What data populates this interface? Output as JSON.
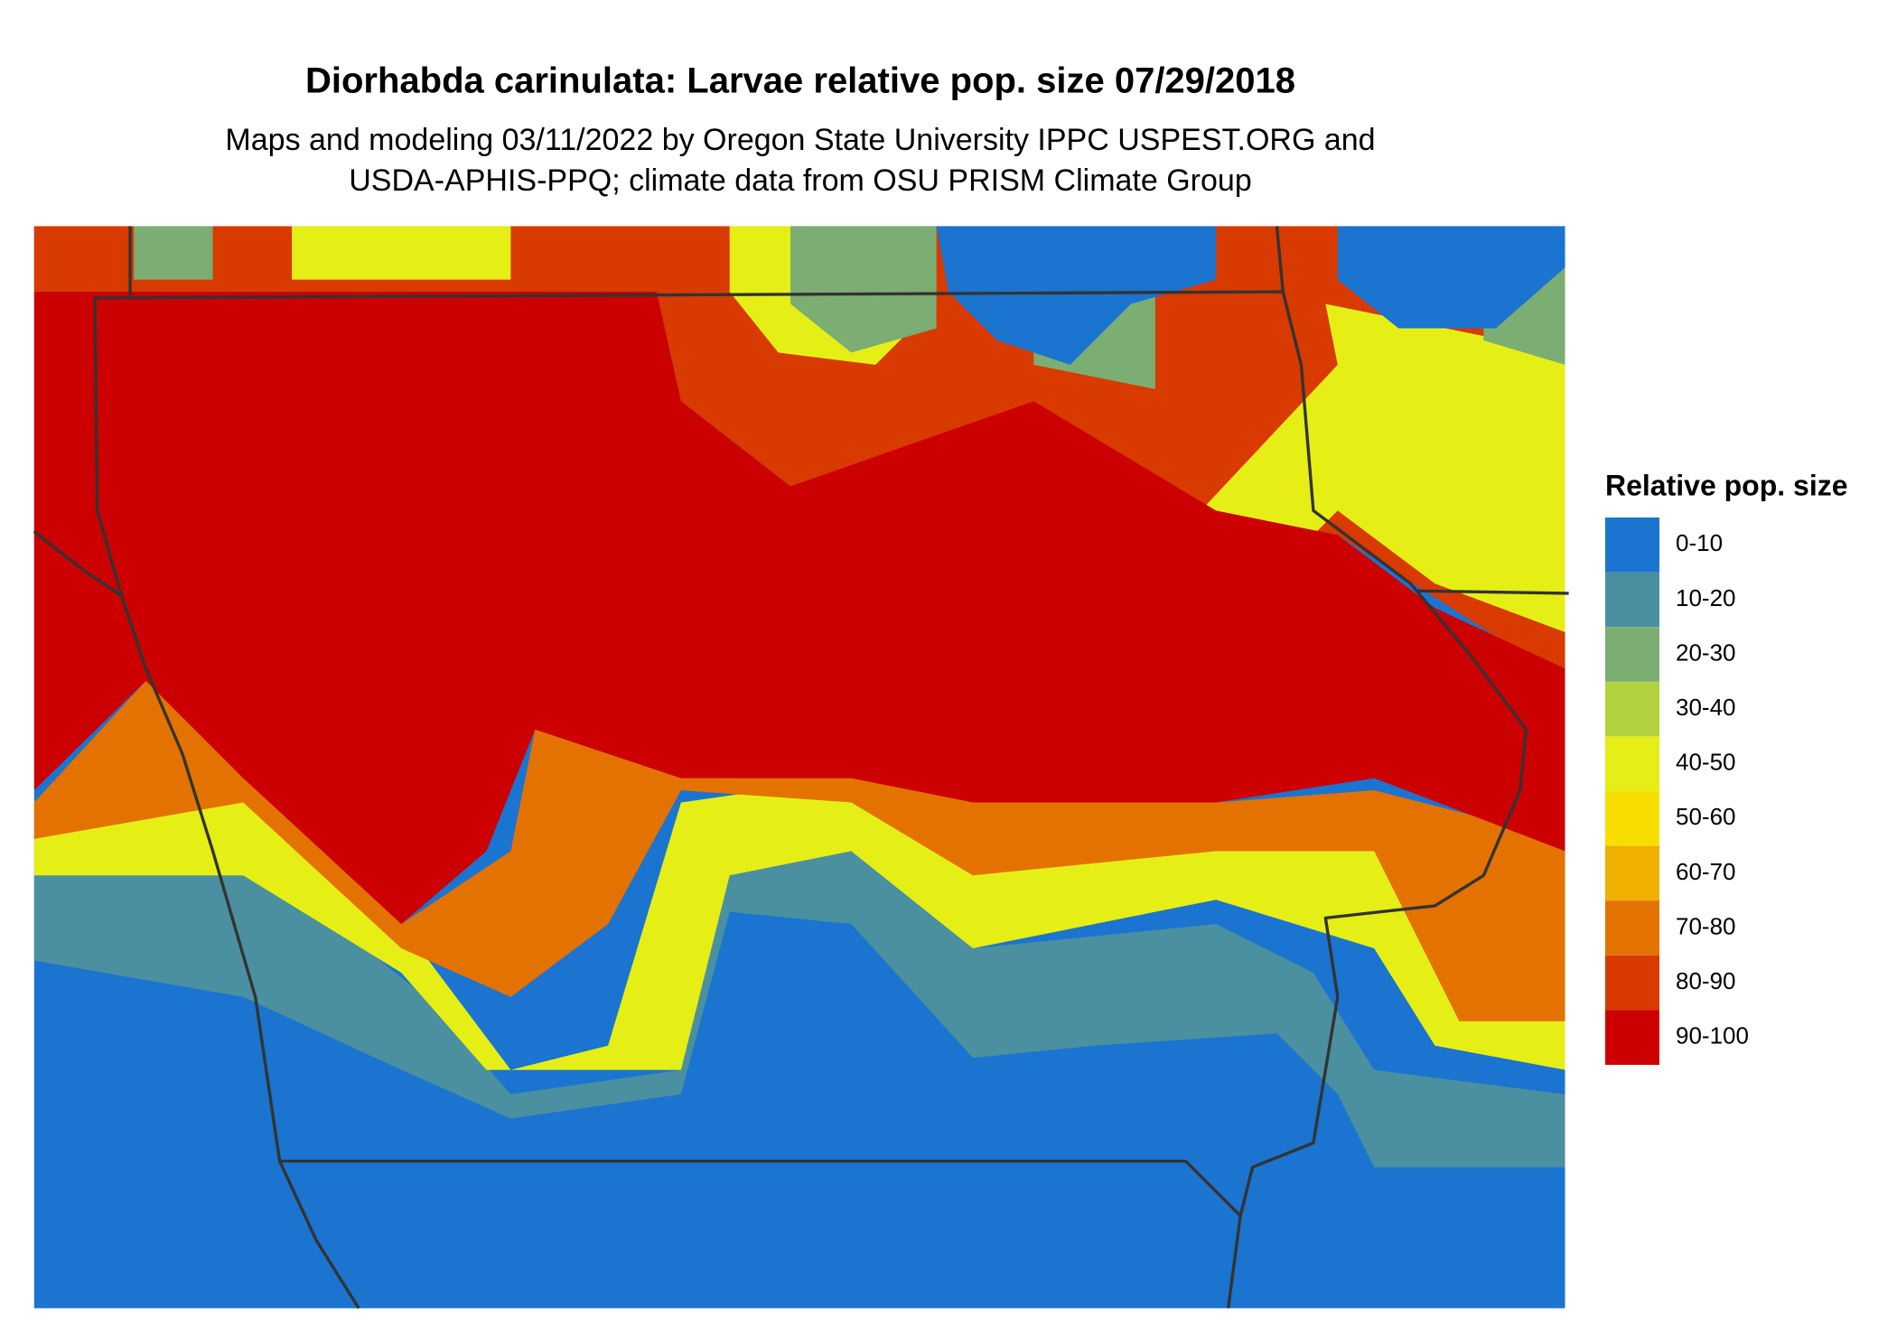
{
  "title": "Diorhabda carinulata: Larvae relative pop. size 07/29/2018",
  "subtitle": [
    "Maps and modeling 03/11/2022 by Oregon State University IPPC USPEST.ORG and",
    "USDA-APHIS-PPQ; climate data from OSU PRISM Climate Group"
  ],
  "legend": {
    "title": "Relative pop. size",
    "items": [
      {
        "label": "0-10",
        "color": "#1a74d0"
      },
      {
        "label": "10-20",
        "color": "#4a90a0"
      },
      {
        "label": "20-30",
        "color": "#7cad73"
      },
      {
        "label": "30-40",
        "color": "#b3d23f"
      },
      {
        "label": "40-50",
        "color": "#e5ef16"
      },
      {
        "label": "50-60",
        "color": "#f8de00"
      },
      {
        "label": "60-70",
        "color": "#f0b000"
      },
      {
        "label": "70-80",
        "color": "#e47200"
      },
      {
        "label": "80-90",
        "color": "#d83a00"
      },
      {
        "label": "90-100",
        "color": "#cc0000"
      }
    ]
  }
}
